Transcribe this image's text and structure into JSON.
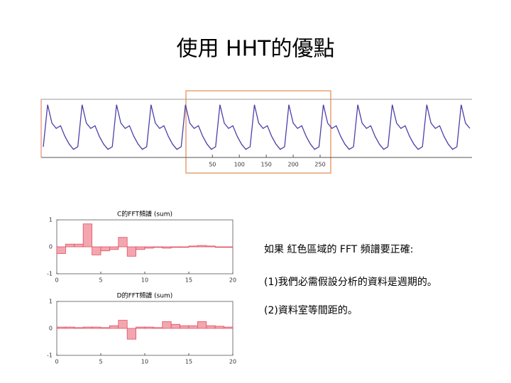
{
  "title": "使用 HHT的優點",
  "signal_chart": {
    "type": "line",
    "color": "#4b3fa8",
    "xlim": [
      -268,
      532
    ],
    "ylim": [
      0,
      1
    ],
    "xticks": [
      50,
      100,
      150,
      200,
      250
    ],
    "x": [
      -264,
      -256,
      -248,
      -240,
      -232,
      -224,
      -216,
      -208,
      -200,
      -192,
      -184,
      -176,
      -168,
      -160,
      -152,
      -144,
      -136,
      -128,
      -120,
      -112,
      -104,
      -96,
      -88,
      -80,
      -72,
      -64,
      -56,
      -48,
      -40,
      -32,
      -24,
      -16,
      -8,
      0,
      8,
      16,
      24,
      32,
      40,
      48,
      56,
      64,
      72,
      80,
      88,
      96,
      104,
      112,
      120,
      128,
      136,
      144,
      152,
      160,
      168,
      176,
      184,
      192,
      200,
      208,
      216,
      224,
      232,
      240,
      248,
      256,
      264,
      272,
      280,
      288,
      296,
      304,
      312,
      320,
      328,
      336,
      344,
      352,
      360,
      368,
      376,
      384,
      392,
      400,
      408,
      416,
      424,
      432,
      440,
      448,
      456,
      464,
      472,
      480,
      488,
      496,
      504,
      512,
      520,
      528
    ],
    "values": [
      0.15,
      0.95,
      0.6,
      0.5,
      0.55,
      0.35,
      0.2,
      0.1,
      0.15,
      0.95,
      0.6,
      0.5,
      0.55,
      0.35,
      0.2,
      0.1,
      0.15,
      0.95,
      0.6,
      0.5,
      0.55,
      0.35,
      0.2,
      0.1,
      0.15,
      0.95,
      0.6,
      0.5,
      0.55,
      0.35,
      0.2,
      0.1,
      0.15,
      0.95,
      0.6,
      0.5,
      0.55,
      0.35,
      0.2,
      0.1,
      0.15,
      0.95,
      0.6,
      0.5,
      0.55,
      0.35,
      0.2,
      0.1,
      0.15,
      0.95,
      0.6,
      0.5,
      0.55,
      0.35,
      0.2,
      0.1,
      0.15,
      0.95,
      0.6,
      0.5,
      0.55,
      0.35,
      0.2,
      0.1,
      0.15,
      0.95,
      0.6,
      0.5,
      0.55,
      0.35,
      0.2,
      0.1,
      0.15,
      0.95,
      0.6,
      0.5,
      0.55,
      0.35,
      0.2,
      0.1,
      0.15,
      0.95,
      0.6,
      0.5,
      0.55,
      0.35,
      0.2,
      0.1,
      0.15,
      0.95,
      0.6,
      0.5,
      0.55,
      0.35,
      0.2,
      0.1,
      0.15,
      0.95,
      0.6,
      0.5
    ]
  },
  "spectra": [
    {
      "type": "bar",
      "title": "C的FFT頻譜 (sum)",
      "color": "#f4a6b0",
      "xlim": [
        0,
        20
      ],
      "ylim": [
        -1,
        1
      ],
      "xticks": [
        0,
        5,
        10,
        15,
        20
      ],
      "yticks": [
        1,
        0,
        -1
      ],
      "values": [
        -0.25,
        0.1,
        0.1,
        0.85,
        -0.3,
        -0.15,
        -0.1,
        0.35,
        -0.35,
        -0.1,
        -0.05,
        0,
        -0.05,
        0,
        -0.02,
        0.03,
        0.05,
        0.03,
        0,
        0
      ]
    },
    {
      "type": "bar",
      "title": "D的FFT頻譜 (sum)",
      "color": "#f4a6b0",
      "xlim": [
        0,
        20
      ],
      "ylim": [
        -1,
        1
      ],
      "xticks": [
        0,
        5,
        10,
        15,
        20
      ],
      "yticks": [
        1,
        0,
        -1
      ],
      "values": [
        0.05,
        0.05,
        0.03,
        0.05,
        0.05,
        0.03,
        0.1,
        0.3,
        -0.4,
        0.05,
        0.05,
        0.03,
        0.25,
        0.15,
        0.1,
        0.1,
        0.25,
        0.1,
        0.08,
        0.05
      ]
    }
  ],
  "notes": [
    "如果 紅色區域的 FFT 頻譜要正確:",
    "(1)我們必需假設分析的資料是週期的。",
    "(2)資料室等間距的。"
  ]
}
